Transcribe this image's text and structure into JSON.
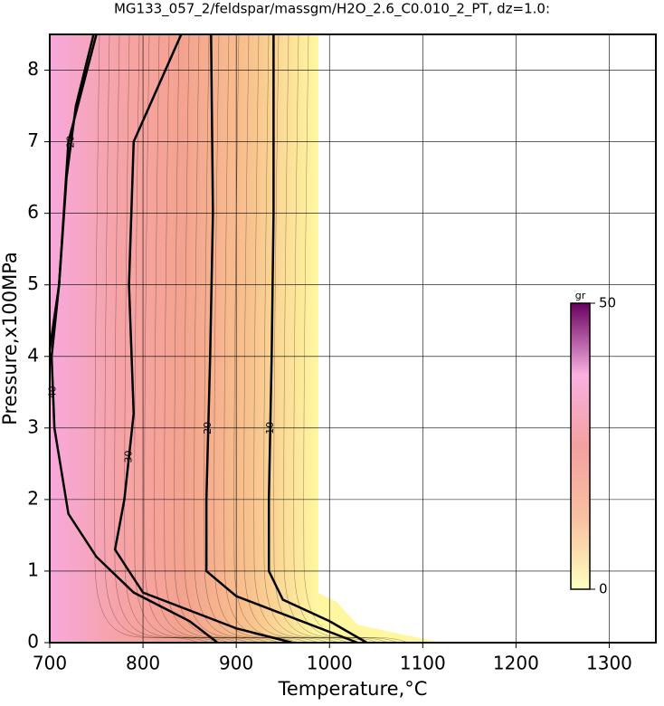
{
  "chart_data": {
    "type": "contour",
    "title": "MG133_057_2/feldspar/massgm/H2O_2.6_C0.010_2_PT, dz=1.0:",
    "x_label": "Temperature,°C",
    "y_label": "Pressure,x100MPa",
    "xlim": [
      700,
      1350
    ],
    "ylim": [
      0,
      8.5
    ],
    "xticks": [
      700,
      800,
      900,
      1000,
      1100,
      1200,
      1300
    ],
    "yticks": [
      0,
      1,
      2,
      3,
      4,
      5,
      6,
      7,
      8
    ],
    "grid": true,
    "field_colors": [
      "#f7a8dc",
      "#f6a3a8",
      "#f4a38f",
      "#f8c38e",
      "#fff7a0"
    ],
    "contours": [
      {
        "level": 10,
        "x": [
          940,
          940,
          938,
          935,
          935,
          950,
          1000,
          1040
        ],
        "y": [
          8.5,
          6,
          4,
          2,
          1,
          0.6,
          0.3,
          0
        ]
      },
      {
        "level": 20,
        "x": [
          873,
          875,
          872,
          868,
          868,
          900,
          960,
          1030
        ],
        "y": [
          8.5,
          6,
          4,
          2,
          1,
          0.65,
          0.35,
          0
        ]
      },
      {
        "level": 30,
        "x": [
          841,
          790,
          785,
          790,
          780,
          770,
          800,
          900,
          960
        ],
        "y": [
          8.5,
          7,
          5,
          3.2,
          2,
          1.3,
          0.7,
          0.2,
          0
        ]
      },
      {
        "level": 40,
        "x": [
          750,
          720,
          710,
          702,
          705,
          720,
          750,
          790,
          850,
          880
        ],
        "y": [
          8.5,
          7,
          5,
          4,
          3,
          1.8,
          1.2,
          0.7,
          0.3,
          0
        ]
      },
      {
        "level": 20,
        "x": [
          747,
          728,
          718,
          710,
          700
        ],
        "y": [
          8.5,
          7.5,
          6.5,
          5,
          4.1
        ]
      }
    ],
    "colorbar": {
      "label": "gr",
      "lim": [
        0,
        50
      ],
      "ticks": [
        0,
        50
      ],
      "colormap": [
        "#ffffc0",
        "#f8c0a0",
        "#f4a0a0",
        "#f8b0e0",
        "#6a0060"
      ]
    }
  }
}
